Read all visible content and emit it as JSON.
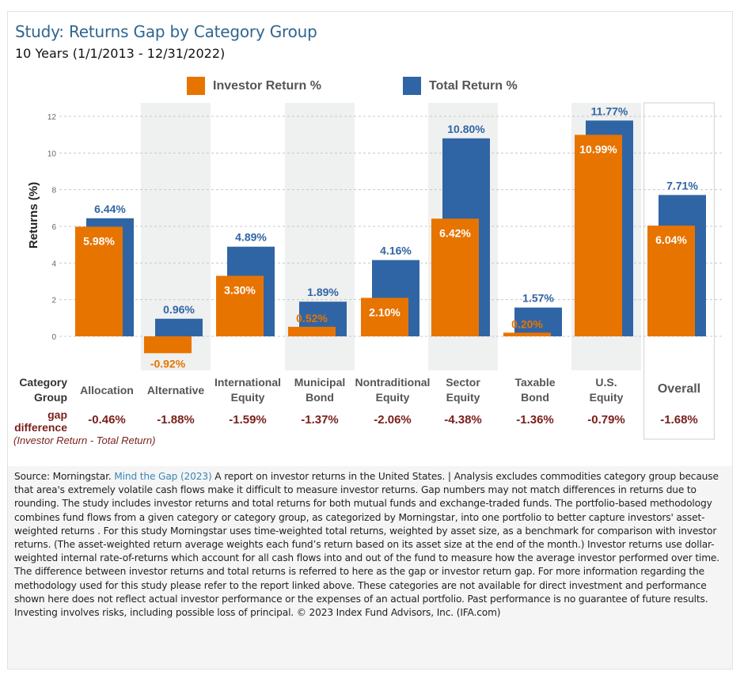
{
  "header": {
    "title": "Study: Returns Gap by Category Group",
    "subtitle": "10 Years (1/1/2013 - 12/31/2022)"
  },
  "colors": {
    "investor": "#e87400",
    "total": "#3065a5",
    "gap": "#7a1f1a",
    "title": "#2f6590",
    "band": "#eff0f0"
  },
  "row_labels": {
    "category_line1": "Category",
    "category_line2": "Group",
    "gap_line1": "gap",
    "gap_line2": "difference",
    "gap_note": "(Investor Return - Total Return)"
  },
  "chart_data": {
    "type": "bar",
    "title": "Study: Returns Gap by Category Group",
    "subtitle": "10 Years (1/1/2013 - 12/31/2022)",
    "xlabel": "Category Group",
    "ylabel": "Returns (%)",
    "ylim": [
      0,
      12
    ],
    "yticks": [
      0,
      2,
      4,
      6,
      8,
      10,
      12
    ],
    "grid": true,
    "legend": "top-center",
    "categories": [
      {
        "line1": "Allocation",
        "line2": ""
      },
      {
        "line1": "Alternative",
        "line2": ""
      },
      {
        "line1": "International",
        "line2": "Equity"
      },
      {
        "line1": "Municipal",
        "line2": "Bond"
      },
      {
        "line1": "Nontraditional",
        "line2": "Equity"
      },
      {
        "line1": "Sector",
        "line2": "Equity"
      },
      {
        "line1": "Taxable",
        "line2": "Bond"
      },
      {
        "line1": "U.S.",
        "line2": "Equity"
      },
      {
        "line1": "Overall",
        "line2": ""
      }
    ],
    "series": [
      {
        "name": "Investor Return %",
        "values": [
          5.98,
          -0.92,
          3.3,
          0.52,
          2.1,
          6.42,
          0.2,
          10.99,
          6.04
        ],
        "labels": [
          "5.98%",
          "-0.92%",
          "3.30%",
          "0.52%",
          "2.10%",
          "6.42%",
          "0.20%",
          "10.99%",
          "6.04%"
        ]
      },
      {
        "name": "Total Return %",
        "values": [
          6.44,
          0.96,
          4.89,
          1.89,
          4.16,
          10.8,
          1.57,
          11.77,
          7.71
        ],
        "labels": [
          "6.44%",
          "0.96%",
          "4.89%",
          "1.89%",
          "4.16%",
          "10.80%",
          "1.57%",
          "11.77%",
          "7.71%"
        ]
      }
    ],
    "gap_difference": [
      -0.46,
      -1.88,
      -1.59,
      -1.37,
      -2.06,
      -4.38,
      -1.36,
      -0.79,
      -1.68
    ],
    "gap_labels": [
      "-0.46%",
      "-1.88%",
      "-1.59%",
      "-1.37%",
      "-2.06%",
      "-4.38%",
      "-1.36%",
      "-0.79%",
      "-1.68%"
    ],
    "shaded_categories": [
      "Alternative",
      "Municipal Bond",
      "Sector Equity",
      "U.S. Equity"
    ],
    "boxed_category": "Overall"
  },
  "footer": {
    "source_prefix": "Source: Morningstar. ",
    "link_text": "Mind the Gap (2023)",
    "body": " A report on investor returns in the United States. | Analysis excludes commodities category group because that area's extremely volatile cash flows make it difficult to measure investor returns. Gap numbers may not match differences in returns due to rounding. The study includes investor returns and total returns for both mutual funds and exchange-traded funds. The portfolio-based methodology combines fund flows from a given category or category group, as categorized by Morningstar, into one portfolio to better capture investors' asset-weighted returns . For this study Morningstar uses time-weighted total returns, weighted by asset size, as a benchmark for comparison with investor returns. (The asset-weighted return average weights each fund’s return based on its asset size at the end of the month.) Investor returns use dollar-weighted internal rate-of-returns which account for all cash flows into and out of the fund to measure how the average investor performed over time. The difference between investor returns and total returns is referred to here as the gap or investor return gap. For more information regarding the methodology used for this study please refer to the report linked above. These categories are not available for direct investment and performance shown here does not reflect actual investor performance or the expenses of an actual portfolio. Past performance is no guarantee of future results. Investing involves risks, including possible loss of principal. © 2023 Index Fund Advisors, Inc. (IFA.com)"
  }
}
